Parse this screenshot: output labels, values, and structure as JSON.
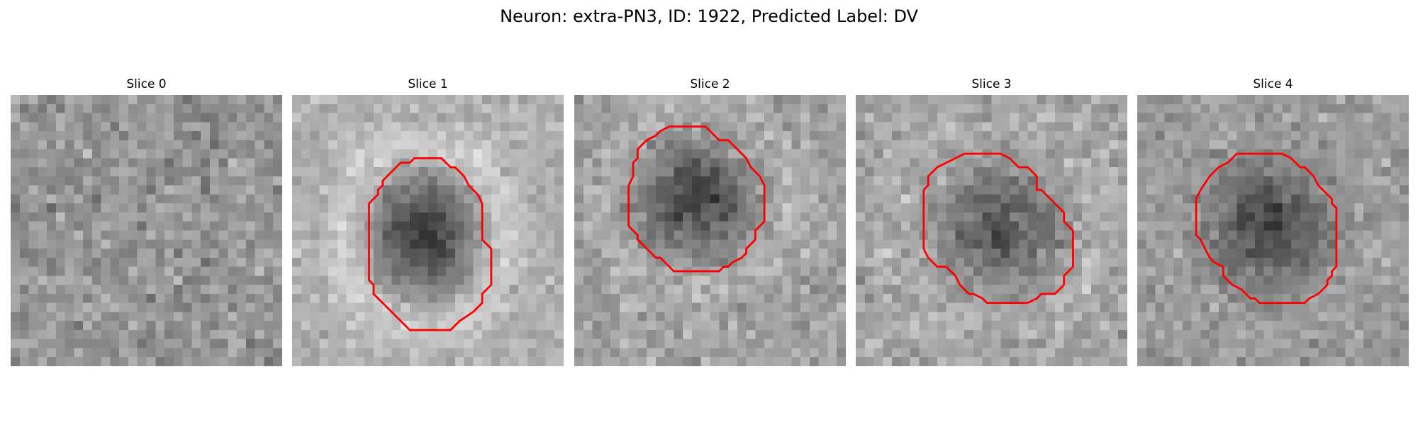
{
  "figure": {
    "title": "Neuron: extra-PN3, ID: 1922, Predicted Label: DV"
  },
  "contour_color": "#ff0000",
  "slices": [
    {
      "title": "Slice 0",
      "has_contour": false
    },
    {
      "title": "Slice 1",
      "has_contour": true
    },
    {
      "title": "Slice 2",
      "has_contour": true
    },
    {
      "title": "Slice 3",
      "has_contour": true
    },
    {
      "title": "Slice 4",
      "has_contour": true
    }
  ]
}
